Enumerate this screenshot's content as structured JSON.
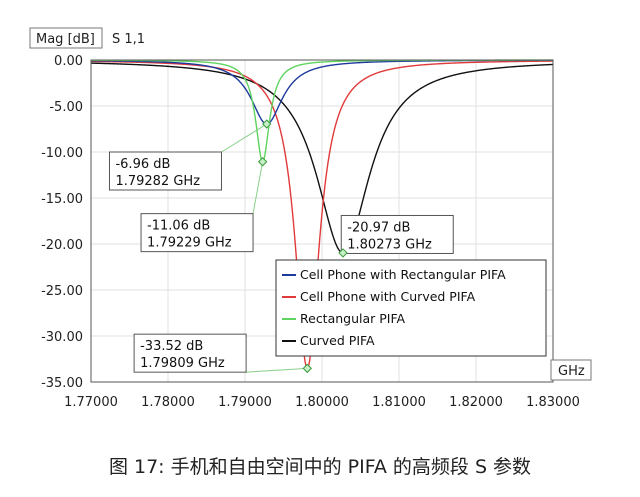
{
  "caption": "图 17: 手机和自由空间中的 PIFA 的高频段 S 参数",
  "chart_data": {
    "type": "line",
    "title": "S 1,1",
    "ylabel": "Mag [dB]",
    "xlabel": "GHz",
    "xlim": [
      1.77,
      1.83
    ],
    "ylim": [
      -35,
      0
    ],
    "x_ticks": [
      1.77,
      1.78,
      1.79,
      1.8,
      1.81,
      1.82,
      1.83
    ],
    "x_tick_labels": [
      "1.77000",
      "1.78000",
      "1.79000",
      "1.80000",
      "1.81000",
      "1.82000",
      "1.83000"
    ],
    "y_ticks": [
      0,
      -5,
      -10,
      -15,
      -20,
      -25,
      -30,
      -35
    ],
    "y_tick_labels": [
      "0.00",
      "-5.00",
      "-10.00",
      "-15.00",
      "-20.00",
      "-25.00",
      "-30.00",
      "-35.00"
    ],
    "grid": true,
    "legend_position": "bottom-right",
    "series": [
      {
        "name": "Cell Phone with Rectangular PIFA",
        "color": "#1f3a9e",
        "resonance_x": 1.79282,
        "resonance_y": -6.96,
        "width": 0.0025
      },
      {
        "name": "Cell Phone with Curved PIFA",
        "color": "#e03a3a",
        "resonance_x": 1.79809,
        "resonance_y": -33.52,
        "width": 0.0019
      },
      {
        "name": "Rectangular PIFA",
        "color": "#5fd35f",
        "resonance_x": 1.79229,
        "resonance_y": -11.06,
        "width": 0.0011
      },
      {
        "name": "Curved PIFA",
        "color": "#111111",
        "resonance_x": 1.80273,
        "resonance_y": -20.97,
        "width": 0.0042
      }
    ],
    "markers": [
      {
        "dB": "-6.96 dB",
        "freq": "1.79282 GHz",
        "x": 1.79282,
        "y": -6.96,
        "box_x": 1.7724,
        "box_y": -10.0
      },
      {
        "dB": "-11.06 dB",
        "freq": "1.79229 GHz",
        "x": 1.79229,
        "y": -11.06,
        "box_x": 1.7765,
        "box_y": -16.7
      },
      {
        "dB": "-20.97 dB",
        "freq": "1.80273 GHz",
        "x": 1.80273,
        "y": -20.97,
        "box_x": 1.8025,
        "box_y": -16.9
      },
      {
        "dB": "-33.52 dB",
        "freq": "1.79809 GHz",
        "x": 1.79809,
        "y": -33.52,
        "box_x": 1.7756,
        "box_y": -29.8
      }
    ]
  }
}
